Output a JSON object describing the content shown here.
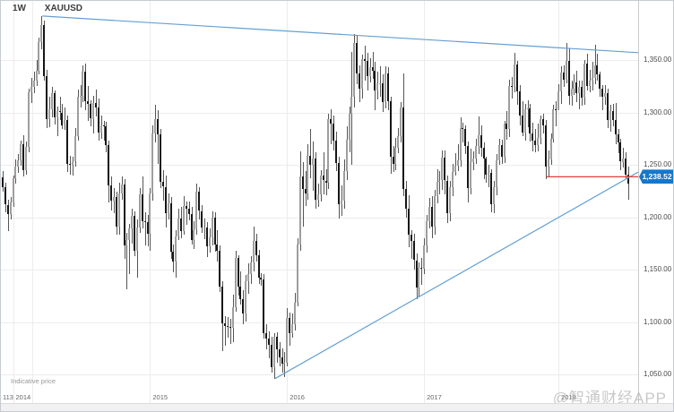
{
  "header": {
    "timeframe": "1W",
    "symbol": "XAUUSD"
  },
  "footer_note": "Indicative price",
  "watermark": "@智通财经APP",
  "y_axis": {
    "rows": [
      {
        "label": "1,350.00",
        "price": 1350
      },
      {
        "label": "1,300.00",
        "price": 1300
      },
      {
        "label": "1,250.00",
        "price": 1250
      },
      {
        "label": "1,200.00",
        "price": 1200
      },
      {
        "label": "1,150.00",
        "price": 1150
      },
      {
        "label": "1,100.00",
        "price": 1100
      },
      {
        "label": "1,050.00",
        "price": 1050
      }
    ],
    "price_tag": {
      "label": "1,238.52",
      "price": 1238.52
    }
  },
  "x_axis": {
    "first_label": {
      "label": "113",
      "x": 2
    },
    "year_ticks": [
      {
        "label": "2014",
        "index": 4
      },
      {
        "label": "2015",
        "index": 57
      },
      {
        "label": "2016",
        "index": 110
      },
      {
        "label": "2017",
        "index": 163
      },
      {
        "label": "2018",
        "index": 215
      }
    ],
    "extra_gridline_x": [
      35
    ]
  },
  "colors": {
    "up_candle": "#9e9e9e",
    "down_candle": "#161616",
    "wick": "#555555",
    "trendline": "#63a0d4",
    "alert_line": "#e04038",
    "tag_bg": "#1777c9",
    "tag_text": "#ffffff",
    "grid": "#ececec"
  },
  "chart_data": {
    "type": "candlestick",
    "symbol": "XAUUSD",
    "timeframe": "weekly",
    "ylim": [
      1040,
      1400
    ],
    "last_price": 1238.52,
    "candles": [
      [
        1238,
        1244,
        1224,
        1229
      ],
      [
        1229,
        1233,
        1205,
        1212
      ],
      [
        1212,
        1217,
        1187,
        1203
      ],
      [
        1203,
        1219,
        1198,
        1214
      ],
      [
        1214,
        1240,
        1210,
        1237
      ],
      [
        1237,
        1255,
        1232,
        1248
      ],
      [
        1248,
        1260,
        1242,
        1254
      ],
      [
        1254,
        1273,
        1249,
        1270
      ],
      [
        1270,
        1278,
        1239,
        1245
      ],
      [
        1245,
        1272,
        1241,
        1267
      ],
      [
        1267,
        1323,
        1262,
        1319
      ],
      [
        1319,
        1333,
        1309,
        1324
      ],
      [
        1324,
        1339,
        1318,
        1330
      ],
      [
        1330,
        1350,
        1325,
        1340
      ],
      [
        1340,
        1371,
        1336,
        1367
      ],
      [
        1367,
        1392,
        1360,
        1383
      ],
      [
        1383,
        1388,
        1330,
        1335
      ],
      [
        1335,
        1341,
        1285,
        1294
      ],
      [
        1294,
        1315,
        1286,
        1303
      ],
      [
        1303,
        1324,
        1295,
        1318
      ],
      [
        1318,
        1321,
        1288,
        1295
      ],
      [
        1295,
        1306,
        1277,
        1301
      ],
      [
        1301,
        1315,
        1293,
        1300
      ],
      [
        1300,
        1308,
        1284,
        1288
      ],
      [
        1288,
        1305,
        1283,
        1293
      ],
      [
        1293,
        1297,
        1243,
        1251
      ],
      [
        1251,
        1259,
        1241,
        1250
      ],
      [
        1250,
        1258,
        1240,
        1253
      ],
      [
        1253,
        1285,
        1248,
        1277
      ],
      [
        1277,
        1322,
        1273,
        1315
      ],
      [
        1315,
        1326,
        1305,
        1316
      ],
      [
        1316,
        1345,
        1310,
        1339
      ],
      [
        1339,
        1347,
        1302,
        1311
      ],
      [
        1311,
        1325,
        1292,
        1308
      ],
      [
        1308,
        1312,
        1287,
        1294
      ],
      [
        1294,
        1316,
        1280,
        1309
      ],
      [
        1309,
        1322,
        1296,
        1305
      ],
      [
        1305,
        1313,
        1273,
        1281
      ],
      [
        1281,
        1297,
        1275,
        1288
      ],
      [
        1288,
        1292,
        1273,
        1287
      ],
      [
        1287,
        1291,
        1262,
        1269
      ],
      [
        1269,
        1273,
        1214,
        1230
      ],
      [
        1230,
        1239,
        1206,
        1216
      ],
      [
        1216,
        1228,
        1204,
        1219
      ],
      [
        1219,
        1224,
        1183,
        1191
      ],
      [
        1191,
        1233,
        1183,
        1223
      ],
      [
        1223,
        1239,
        1217,
        1231
      ],
      [
        1231,
        1236,
        1160,
        1173
      ],
      [
        1173,
        1185,
        1131,
        1178
      ],
      [
        1178,
        1194,
        1146,
        1189
      ],
      [
        1189,
        1208,
        1175,
        1201
      ],
      [
        1201,
        1206,
        1163,
        1168
      ],
      [
        1168,
        1198,
        1142,
        1190
      ],
      [
        1190,
        1228,
        1185,
        1222
      ],
      [
        1222,
        1239,
        1189,
        1196
      ],
      [
        1196,
        1205,
        1173,
        1195
      ],
      [
        1195,
        1202,
        1172,
        1184
      ],
      [
        1184,
        1228,
        1168,
        1223
      ],
      [
        1223,
        1288,
        1216,
        1280
      ],
      [
        1280,
        1307,
        1271,
        1294
      ],
      [
        1294,
        1302,
        1251,
        1279
      ],
      [
        1279,
        1284,
        1228,
        1234
      ],
      [
        1234,
        1245,
        1216,
        1229
      ],
      [
        1229,
        1240,
        1190,
        1204
      ],
      [
        1204,
        1223,
        1198,
        1213
      ],
      [
        1213,
        1219,
        1160,
        1167
      ],
      [
        1167,
        1174,
        1147,
        1158
      ],
      [
        1158,
        1188,
        1142,
        1182
      ],
      [
        1182,
        1208,
        1178,
        1199
      ],
      [
        1199,
        1210,
        1180,
        1187
      ],
      [
        1187,
        1220,
        1183,
        1211
      ],
      [
        1211,
        1215,
        1193,
        1208
      ],
      [
        1208,
        1215,
        1197,
        1203
      ],
      [
        1203,
        1210,
        1174,
        1178
      ],
      [
        1178,
        1196,
        1170,
        1188
      ],
      [
        1188,
        1232,
        1183,
        1224
      ],
      [
        1224,
        1229,
        1198,
        1206
      ],
      [
        1206,
        1212,
        1185,
        1190
      ],
      [
        1190,
        1199,
        1179,
        1190
      ],
      [
        1190,
        1195,
        1162,
        1172
      ],
      [
        1172,
        1189,
        1166,
        1181
      ],
      [
        1181,
        1206,
        1173,
        1200
      ],
      [
        1200,
        1205,
        1167,
        1174
      ],
      [
        1174,
        1188,
        1158,
        1168
      ],
      [
        1168,
        1173,
        1129,
        1134
      ],
      [
        1134,
        1139,
        1072,
        1099
      ],
      [
        1099,
        1106,
        1077,
        1096
      ],
      [
        1096,
        1105,
        1085,
        1095
      ],
      [
        1095,
        1103,
        1079,
        1094
      ],
      [
        1094,
        1126,
        1081,
        1114
      ],
      [
        1114,
        1168,
        1110,
        1161
      ],
      [
        1161,
        1164,
        1125,
        1134
      ],
      [
        1134,
        1148,
        1117,
        1122
      ],
      [
        1122,
        1130,
        1098,
        1108
      ],
      [
        1108,
        1145,
        1100,
        1139
      ],
      [
        1139,
        1156,
        1127,
        1146
      ],
      [
        1146,
        1163,
        1136,
        1157
      ],
      [
        1157,
        1191,
        1148,
        1177
      ],
      [
        1177,
        1184,
        1158,
        1164
      ],
      [
        1164,
        1169,
        1136,
        1142
      ],
      [
        1142,
        1147,
        1135,
        1141
      ],
      [
        1141,
        1146,
        1084,
        1089
      ],
      [
        1089,
        1098,
        1074,
        1084
      ],
      [
        1084,
        1091,
        1065,
        1078
      ],
      [
        1078,
        1086,
        1052,
        1057
      ],
      [
        1057,
        1089,
        1046,
        1086
      ],
      [
        1086,
        1090,
        1061,
        1074
      ],
      [
        1074,
        1081,
        1058,
        1066
      ],
      [
        1066,
        1075,
        1052,
        1060
      ],
      [
        1060,
        1071,
        1047,
        1061
      ],
      [
        1061,
        1113,
        1058,
        1104
      ],
      [
        1104,
        1109,
        1077,
        1089
      ],
      [
        1089,
        1108,
        1085,
        1098
      ],
      [
        1098,
        1128,
        1092,
        1118
      ],
      [
        1118,
        1180,
        1115,
        1174
      ],
      [
        1174,
        1263,
        1168,
        1239
      ],
      [
        1239,
        1253,
        1191,
        1227
      ],
      [
        1227,
        1244,
        1211,
        1223
      ],
      [
        1223,
        1270,
        1217,
        1259
      ],
      [
        1259,
        1284,
        1237,
        1250
      ],
      [
        1250,
        1272,
        1225,
        1256
      ],
      [
        1256,
        1262,
        1208,
        1217
      ],
      [
        1217,
        1232,
        1210,
        1222
      ],
      [
        1222,
        1245,
        1215,
        1240
      ],
      [
        1240,
        1262,
        1222,
        1235
      ],
      [
        1235,
        1246,
        1221,
        1233
      ],
      [
        1233,
        1299,
        1227,
        1294
      ],
      [
        1294,
        1303,
        1270,
        1289
      ],
      [
        1289,
        1297,
        1264,
        1273
      ],
      [
        1273,
        1282,
        1244,
        1252
      ],
      [
        1252,
        1258,
        1199,
        1212
      ],
      [
        1212,
        1230,
        1201,
        1216
      ],
      [
        1216,
        1255,
        1208,
        1244
      ],
      [
        1244,
        1287,
        1235,
        1274
      ],
      [
        1274,
        1306,
        1262,
        1299
      ],
      [
        1299,
        1358,
        1250,
        1315
      ],
      [
        1315,
        1375,
        1305,
        1366
      ],
      [
        1366,
        1374,
        1327,
        1337
      ],
      [
        1337,
        1345,
        1310,
        1323
      ],
      [
        1323,
        1355,
        1313,
        1351
      ],
      [
        1351,
        1364,
        1330,
        1349
      ],
      [
        1349,
        1357,
        1321,
        1335
      ],
      [
        1335,
        1352,
        1329,
        1343
      ],
      [
        1343,
        1358,
        1332,
        1340
      ],
      [
        1340,
        1348,
        1302,
        1321
      ],
      [
        1321,
        1339,
        1312,
        1328
      ],
      [
        1328,
        1344,
        1315,
        1328
      ],
      [
        1328,
        1336,
        1300,
        1310
      ],
      [
        1310,
        1344,
        1304,
        1337
      ],
      [
        1337,
        1343,
        1302,
        1311
      ],
      [
        1311,
        1315,
        1241,
        1258
      ],
      [
        1258,
        1268,
        1243,
        1251
      ],
      [
        1251,
        1276,
        1245,
        1266
      ],
      [
        1266,
        1285,
        1261,
        1277
      ],
      [
        1277,
        1310,
        1271,
        1305
      ],
      [
        1305,
        1337,
        1220,
        1227
      ],
      [
        1227,
        1235,
        1200,
        1208
      ],
      [
        1208,
        1221,
        1171,
        1183
      ],
      [
        1183,
        1188,
        1160,
        1177
      ],
      [
        1177,
        1184,
        1150,
        1159
      ],
      [
        1159,
        1165,
        1122,
        1133
      ],
      [
        1133,
        1157,
        1124,
        1152
      ],
      [
        1152,
        1161,
        1135,
        1151
      ],
      [
        1151,
        1180,
        1146,
        1173
      ],
      [
        1173,
        1202,
        1166,
        1196
      ],
      [
        1196,
        1218,
        1189,
        1210
      ],
      [
        1210,
        1220,
        1180,
        1191
      ],
      [
        1191,
        1226,
        1183,
        1220
      ],
      [
        1220,
        1246,
        1213,
        1234
      ],
      [
        1234,
        1244,
        1222,
        1235
      ],
      [
        1235,
        1264,
        1226,
        1257
      ],
      [
        1257,
        1264,
        1222,
        1235
      ],
      [
        1235,
        1240,
        1194,
        1204
      ],
      [
        1204,
        1235,
        1196,
        1229
      ],
      [
        1229,
        1251,
        1220,
        1243
      ],
      [
        1243,
        1261,
        1240,
        1249
      ],
      [
        1249,
        1270,
        1244,
        1254
      ],
      [
        1254,
        1295,
        1248,
        1285
      ],
      [
        1285,
        1290,
        1271,
        1284
      ],
      [
        1284,
        1288,
        1260,
        1268
      ],
      [
        1268,
        1272,
        1214,
        1228
      ],
      [
        1228,
        1265,
        1222,
        1253
      ],
      [
        1253,
        1263,
        1245,
        1256
      ],
      [
        1256,
        1275,
        1251,
        1268
      ],
      [
        1268,
        1296,
        1260,
        1278
      ],
      [
        1278,
        1288,
        1258,
        1266
      ],
      [
        1266,
        1271,
        1236,
        1256
      ],
      [
        1256,
        1258,
        1233,
        1241
      ],
      [
        1241,
        1250,
        1229,
        1242
      ],
      [
        1242,
        1246,
        1205,
        1212
      ],
      [
        1212,
        1235,
        1204,
        1229
      ],
      [
        1229,
        1260,
        1221,
        1254
      ],
      [
        1254,
        1275,
        1250,
        1269
      ],
      [
        1269,
        1274,
        1251,
        1258
      ],
      [
        1258,
        1292,
        1252,
        1289
      ],
      [
        1289,
        1301,
        1274,
        1284
      ],
      [
        1284,
        1331,
        1276,
        1325
      ],
      [
        1325,
        1334,
        1313,
        1324
      ],
      [
        1324,
        1357,
        1319,
        1346
      ],
      [
        1346,
        1349,
        1307,
        1320
      ],
      [
        1320,
        1326,
        1288,
        1297
      ],
      [
        1297,
        1311,
        1277,
        1281
      ],
      [
        1281,
        1308,
        1273,
        1303
      ],
      [
        1303,
        1312,
        1286,
        1304
      ],
      [
        1304,
        1308,
        1272,
        1280
      ],
      [
        1280,
        1290,
        1263,
        1273
      ],
      [
        1273,
        1284,
        1262,
        1269
      ],
      [
        1269,
        1289,
        1263,
        1276
      ],
      [
        1276,
        1297,
        1270,
        1294
      ],
      [
        1294,
        1299,
        1280,
        1288
      ],
      [
        1288,
        1293,
        1236,
        1248
      ],
      [
        1248,
        1264,
        1238,
        1255
      ],
      [
        1255,
        1280,
        1250,
        1275
      ],
      [
        1275,
        1307,
        1271,
        1303
      ],
      [
        1303,
        1311,
        1287,
        1302
      ],
      [
        1302,
        1327,
        1302,
        1320
      ],
      [
        1320,
        1344,
        1308,
        1338
      ],
      [
        1338,
        1345,
        1324,
        1331
      ],
      [
        1331,
        1366,
        1328,
        1349
      ],
      [
        1349,
        1361,
        1307,
        1316
      ],
      [
        1316,
        1330,
        1306,
        1323
      ],
      [
        1323,
        1336,
        1317,
        1329
      ],
      [
        1329,
        1340,
        1310,
        1318
      ],
      [
        1318,
        1330,
        1303,
        1324
      ],
      [
        1324,
        1330,
        1306,
        1314
      ],
      [
        1314,
        1350,
        1307,
        1347
      ],
      [
        1347,
        1356,
        1321,
        1325
      ],
      [
        1325,
        1341,
        1319,
        1330
      ],
      [
        1330,
        1348,
        1321,
        1333
      ],
      [
        1333,
        1365,
        1327,
        1345
      ],
      [
        1345,
        1356,
        1330,
        1336
      ],
      [
        1336,
        1339,
        1315,
        1323
      ],
      [
        1323,
        1326,
        1302,
        1315
      ],
      [
        1315,
        1326,
        1307,
        1318
      ],
      [
        1318,
        1323,
        1285,
        1293
      ],
      [
        1293,
        1307,
        1282,
        1301
      ],
      [
        1301,
        1308,
        1287,
        1293
      ],
      [
        1293,
        1309,
        1270,
        1279
      ],
      [
        1279,
        1284,
        1261,
        1271
      ],
      [
        1271,
        1275,
        1245,
        1253
      ],
      [
        1253,
        1266,
        1247,
        1256
      ],
      [
        1256,
        1262,
        1236,
        1241
      ],
      [
        1241,
        1248,
        1217,
        1232
      ]
    ],
    "overlays": {
      "trendlines": [
        {
          "name": "descending-resistance",
          "from_index": 15,
          "from_price": 1392,
          "to_price": 1357
        },
        {
          "name": "ascending-support",
          "from_index": 105,
          "from_price": 1046,
          "to_price": 1243
        }
      ],
      "horizontal_line": {
        "from_index": 210,
        "price": 1238.52
      }
    }
  }
}
